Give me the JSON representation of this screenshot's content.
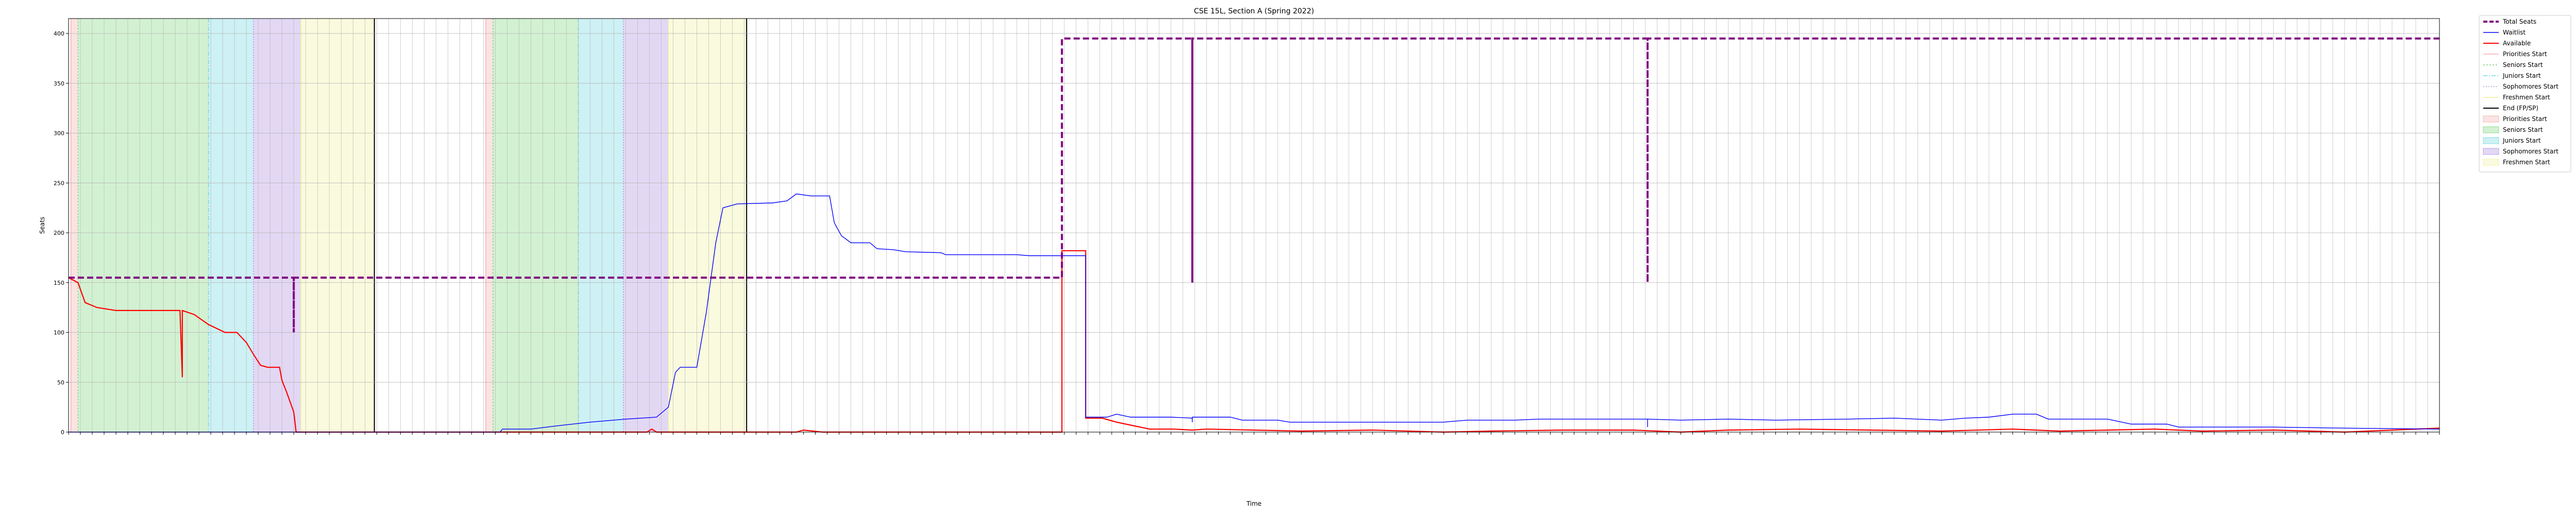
{
  "chart_data": {
    "type": "line",
    "title": "CSE 15L, Section A (Spring 2022)",
    "xlabel": "Time",
    "ylabel": "Seats",
    "ylim": [
      0,
      415
    ],
    "xlim": [
      0,
      100
    ],
    "yticks": [
      0,
      50,
      100,
      150,
      200,
      250,
      300,
      350,
      400
    ],
    "grid": true,
    "legend_position": "outside-right-top",
    "x_tick_labels_visible": false,
    "colors": {
      "total": "#800080",
      "waitlist": "#0000ff",
      "available": "#ff0000",
      "priorities": "#f4b0b0",
      "seniors": "#7fd87f",
      "juniors": "#70d8e0",
      "sophomores": "#b090e0",
      "freshmen": "#f0f0a0",
      "end": "#000000",
      "grid": "#b0b0b0"
    },
    "legend": [
      {
        "label": "Total Seats",
        "kind": "line",
        "key": "total",
        "dash": "8,4",
        "width": 4
      },
      {
        "label": "Waitlist",
        "kind": "line",
        "key": "waitlist",
        "dash": "",
        "width": 1.5
      },
      {
        "label": "Available",
        "kind": "line",
        "key": "available",
        "dash": "",
        "width": 2
      },
      {
        "label": "Priorities Start",
        "kind": "line",
        "key": "priorities",
        "dash": "",
        "width": 1.5
      },
      {
        "label": "Seniors Start",
        "kind": "line",
        "key": "seniors",
        "dash": "3,3",
        "width": 1.5
      },
      {
        "label": "Juniors Start",
        "kind": "line",
        "key": "juniors",
        "dash": "8,3,2,3",
        "width": 1.5
      },
      {
        "label": "Sophomores Start",
        "kind": "line",
        "key": "sophomores",
        "dash": "2,3",
        "width": 1.5
      },
      {
        "label": "Freshmen Start",
        "kind": "line",
        "key": "freshmen",
        "dash": "",
        "width": 1.5
      },
      {
        "label": "End (FP/SP)",
        "kind": "line",
        "key": "end",
        "dash": "",
        "width": 2
      },
      {
        "label": "Priorities Start",
        "kind": "patch",
        "key": "priorities"
      },
      {
        "label": "Seniors Start",
        "kind": "patch",
        "key": "seniors"
      },
      {
        "label": "Juniors Start",
        "kind": "patch",
        "key": "juniors"
      },
      {
        "label": "Sophomores Start",
        "kind": "patch",
        "key": "sophomores"
      },
      {
        "label": "Freshmen Start",
        "kind": "patch",
        "key": "freshmen"
      }
    ],
    "phases": [
      {
        "key": "priorities",
        "start": 0.1,
        "end": 0.4
      },
      {
        "key": "seniors",
        "start": 0.4,
        "end": 5.9
      },
      {
        "key": "juniors",
        "start": 5.9,
        "end": 7.8
      },
      {
        "key": "sophomores",
        "start": 7.8,
        "end": 9.8
      },
      {
        "key": "freshmen",
        "start": 9.8,
        "end": 12.9
      },
      {
        "key": "priorities",
        "start": 17.6,
        "end": 17.9
      },
      {
        "key": "seniors",
        "start": 17.9,
        "end": 21.5
      },
      {
        "key": "juniors",
        "start": 21.5,
        "end": 23.4
      },
      {
        "key": "sophomores",
        "start": 23.4,
        "end": 25.3
      },
      {
        "key": "freshmen",
        "start": 25.3,
        "end": 28.6
      }
    ],
    "end_markers": [
      12.9,
      28.6
    ],
    "series": [
      {
        "name": "Total Seats",
        "key": "total",
        "points": [
          [
            0,
            155
          ],
          [
            9.5,
            155
          ],
          [
            9.5,
            100
          ],
          [
            9.5,
            155
          ],
          [
            41.9,
            155
          ],
          [
            41.9,
            395
          ],
          [
            47.4,
            395
          ],
          [
            47.4,
            150
          ],
          [
            47.4,
            395
          ],
          [
            66.6,
            395
          ],
          [
            66.6,
            150
          ],
          [
            66.6,
            395
          ],
          [
            100,
            395
          ]
        ]
      },
      {
        "name": "Waitlist",
        "key": "waitlist",
        "points": [
          [
            0,
            0
          ],
          [
            18.2,
            0
          ],
          [
            18.3,
            3
          ],
          [
            19.5,
            3
          ],
          [
            20.5,
            6
          ],
          [
            22,
            10
          ],
          [
            23.5,
            13
          ],
          [
            24.8,
            15
          ],
          [
            25.3,
            25
          ],
          [
            25.6,
            60
          ],
          [
            25.8,
            65
          ],
          [
            26.5,
            65
          ],
          [
            26.9,
            120
          ],
          [
            27.3,
            190
          ],
          [
            27.6,
            225
          ],
          [
            28.2,
            229
          ],
          [
            29.7,
            230
          ],
          [
            30.3,
            232
          ],
          [
            30.7,
            239
          ],
          [
            31.3,
            237
          ],
          [
            32.1,
            237
          ],
          [
            32.3,
            210
          ],
          [
            32.6,
            197
          ],
          [
            33,
            190
          ],
          [
            33.8,
            190
          ],
          [
            34.1,
            184
          ],
          [
            34.8,
            183
          ],
          [
            35.3,
            181
          ],
          [
            36.8,
            180
          ],
          [
            37,
            178
          ],
          [
            40,
            178
          ],
          [
            40.5,
            177
          ],
          [
            41.9,
            177
          ],
          [
            42.9,
            177
          ],
          [
            42.9,
            15
          ],
          [
            43.8,
            15
          ],
          [
            44.2,
            18
          ],
          [
            44.8,
            15
          ],
          [
            46.5,
            15
          ],
          [
            47.4,
            14
          ],
          [
            47.4,
            10
          ],
          [
            47.4,
            15
          ],
          [
            49,
            15
          ],
          [
            49.5,
            12
          ],
          [
            51,
            12
          ],
          [
            51.5,
            10
          ],
          [
            58,
            10
          ],
          [
            59,
            12
          ],
          [
            61,
            12
          ],
          [
            62,
            13
          ],
          [
            66,
            13
          ],
          [
            66.6,
            13
          ],
          [
            66.6,
            5
          ],
          [
            66.6,
            13
          ],
          [
            68,
            12
          ],
          [
            70,
            13
          ],
          [
            72,
            12
          ],
          [
            75,
            13
          ],
          [
            77,
            14
          ],
          [
            79,
            12
          ],
          [
            80,
            14
          ],
          [
            81,
            15
          ],
          [
            82,
            18
          ],
          [
            83,
            18
          ],
          [
            83.5,
            13
          ],
          [
            86,
            13
          ],
          [
            87,
            8
          ],
          [
            88.5,
            8
          ],
          [
            89,
            5
          ],
          [
            91,
            5
          ],
          [
            93,
            5
          ],
          [
            96,
            4
          ],
          [
            100,
            3
          ]
        ]
      },
      {
        "name": "Available",
        "key": "available",
        "points": [
          [
            0,
            155
          ],
          [
            0.4,
            150
          ],
          [
            0.7,
            130
          ],
          [
            1.2,
            125
          ],
          [
            2,
            122
          ],
          [
            4.7,
            122
          ],
          [
            4.8,
            55
          ],
          [
            4.8,
            122
          ],
          [
            5.3,
            118
          ],
          [
            5.9,
            108
          ],
          [
            6.6,
            100
          ],
          [
            7.1,
            100
          ],
          [
            7.5,
            90
          ],
          [
            7.8,
            78
          ],
          [
            8.1,
            67
          ],
          [
            8.4,
            65
          ],
          [
            8.9,
            65
          ],
          [
            9,
            52
          ],
          [
            9.2,
            40
          ],
          [
            9.5,
            20
          ],
          [
            9.6,
            0
          ],
          [
            24.4,
            0
          ],
          [
            24.6,
            3
          ],
          [
            24.8,
            0
          ],
          [
            30.7,
            0
          ],
          [
            31,
            2
          ],
          [
            31.8,
            0
          ],
          [
            41.9,
            0
          ],
          [
            41.9,
            182
          ],
          [
            42.9,
            182
          ],
          [
            42.9,
            14
          ],
          [
            43.6,
            14
          ],
          [
            44.2,
            10
          ],
          [
            44.8,
            7
          ],
          [
            45.6,
            3
          ],
          [
            46.6,
            3
          ],
          [
            47.4,
            2
          ],
          [
            48,
            3
          ],
          [
            50,
            2
          ],
          [
            52,
            1
          ],
          [
            55,
            2
          ],
          [
            58,
            0
          ],
          [
            60,
            1
          ],
          [
            63,
            2
          ],
          [
            66,
            2
          ],
          [
            68,
            0
          ],
          [
            70,
            2
          ],
          [
            73,
            3
          ],
          [
            76,
            2
          ],
          [
            79,
            1
          ],
          [
            82,
            3
          ],
          [
            84,
            1
          ],
          [
            86,
            2
          ],
          [
            88,
            3
          ],
          [
            90,
            1
          ],
          [
            93,
            2
          ],
          [
            96,
            0
          ],
          [
            98,
            2
          ],
          [
            100,
            4
          ]
        ]
      }
    ]
  }
}
